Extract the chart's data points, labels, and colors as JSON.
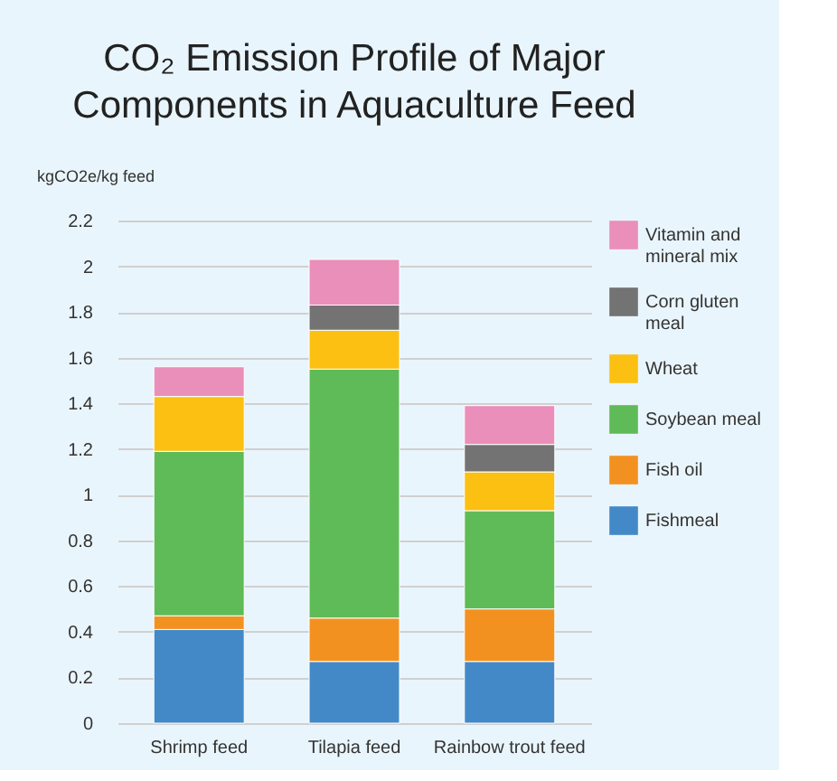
{
  "chart_data": {
    "type": "bar",
    "title": "CO₂ Emission Profile of Major Components in Aquaculture Feed",
    "ylabel": "kgCO2e/kg feed",
    "categories": [
      "Shrimp feed",
      "Tilapia feed",
      "Rainbow trout feed"
    ],
    "stacked": true,
    "series": [
      {
        "name": "Fishmeal",
        "color": "#4389c8",
        "values": [
          0.41,
          0.27,
          0.27
        ]
      },
      {
        "name": "Fish oil",
        "color": "#f39120",
        "values": [
          0.06,
          0.19,
          0.23
        ]
      },
      {
        "name": "Soybean meal",
        "color": "#5fbb58",
        "values": [
          0.72,
          1.09,
          0.43
        ]
      },
      {
        "name": "Wheat",
        "color": "#fbc012",
        "values": [
          0.24,
          0.17,
          0.17
        ]
      },
      {
        "name": "Corn gluten meal",
        "color": "#737373",
        "values": [
          0,
          0.11,
          0.12
        ]
      },
      {
        "name": "Vitamin and mineral mix",
        "color": "#ea8fba",
        "values": [
          0.13,
          0.2,
          0.17
        ]
      }
    ],
    "ylim": [
      0,
      2.2
    ],
    "yticks": [
      0,
      0.2,
      0.4,
      0.6,
      0.8,
      1,
      1.2,
      1.4,
      1.6,
      1.8,
      2,
      2.2
    ],
    "grid": "y",
    "legend": "right"
  }
}
